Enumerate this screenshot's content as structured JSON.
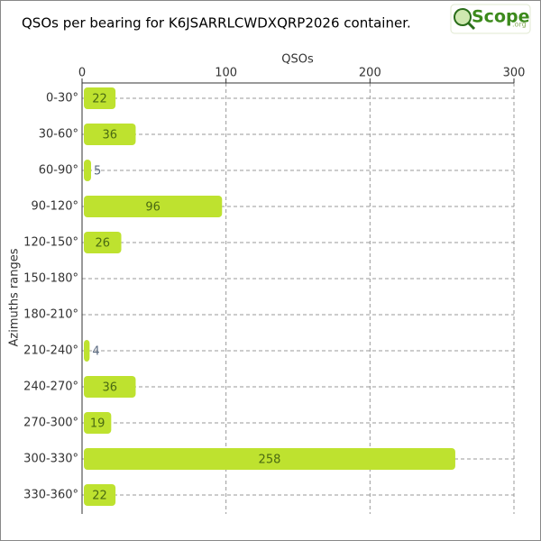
{
  "chart_data": {
    "type": "bar",
    "orientation": "horizontal",
    "title": "QSOs per bearing for K6JSARRLCWDXQRP2026 container.",
    "logo": {
      "text": "Scope",
      "suffix": ".org"
    },
    "x_label": "QSOs",
    "y_label": "Azimuths ranges",
    "categories": [
      "0-30°",
      "30-60°",
      "60-90°",
      "90-120°",
      "120-150°",
      "150-180°",
      "180-210°",
      "210-240°",
      "240-270°",
      "270-300°",
      "300-330°",
      "330-360°"
    ],
    "values": [
      22,
      36,
      5,
      96,
      26,
      0,
      0,
      4,
      36,
      19,
      258,
      22
    ],
    "color": "#bee22f",
    "xlim": [
      0,
      300
    ],
    "xticks": [
      0,
      100,
      200,
      300
    ],
    "grid": true
  }
}
